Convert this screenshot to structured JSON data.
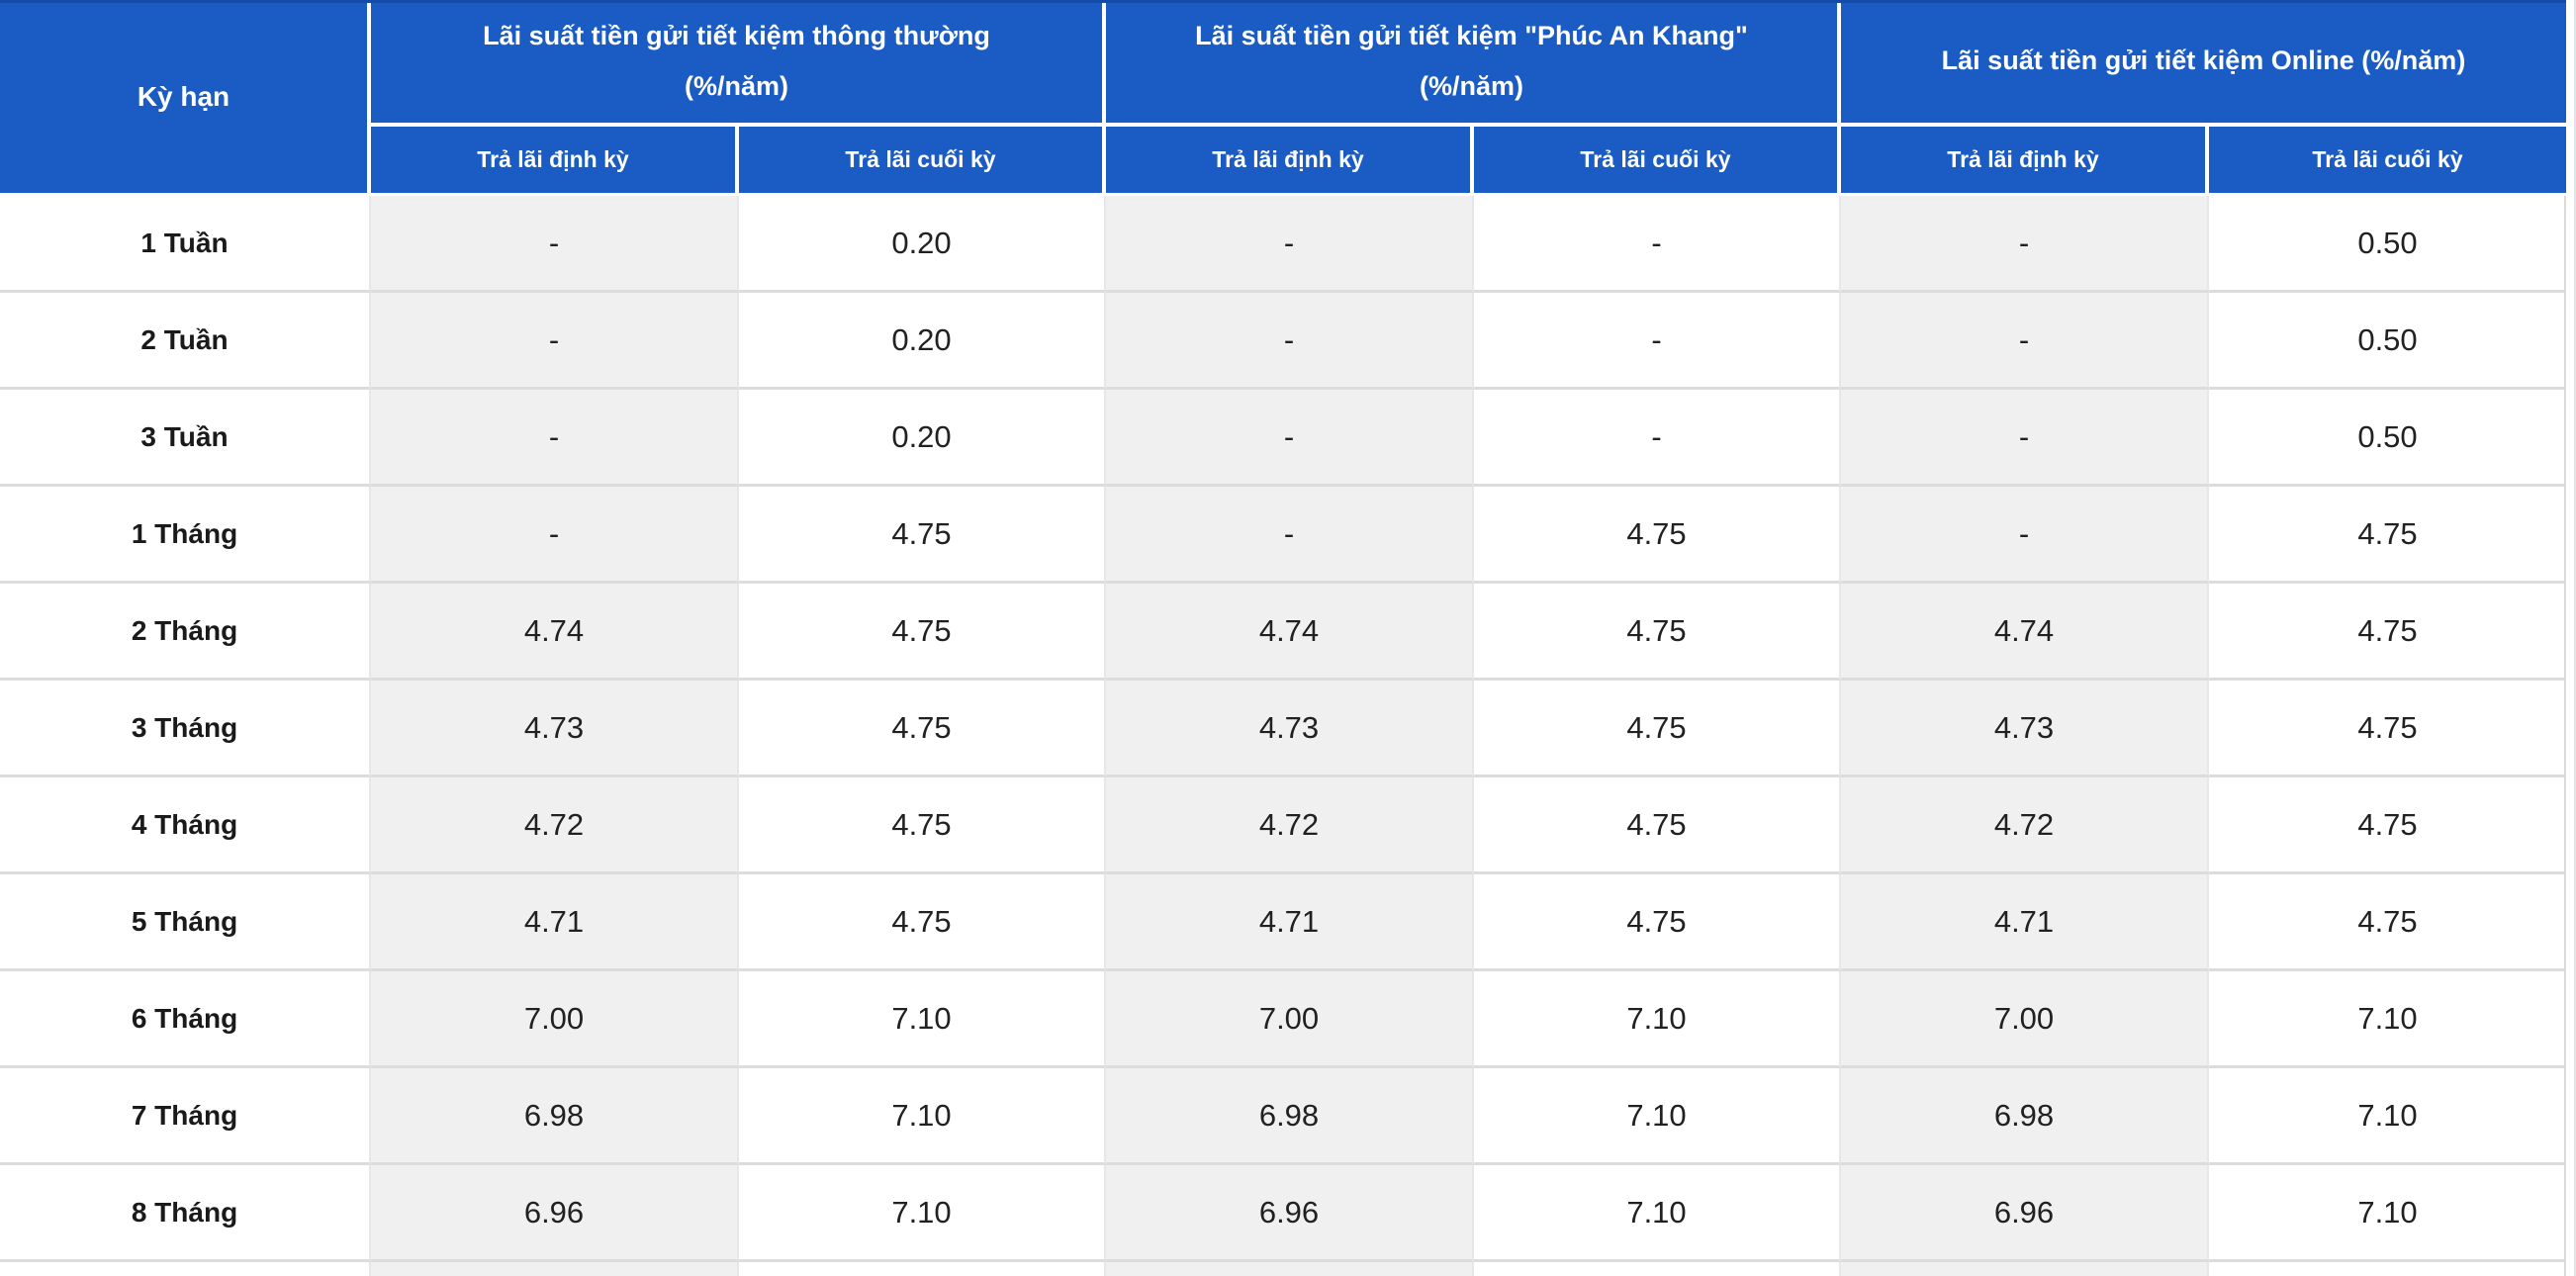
{
  "table": {
    "term_column_header": "Kỳ hạn",
    "column_groups": [
      {
        "title": "Lãi suất tiền gửi tiết kiệm thông thường",
        "unit": "(%/năm)",
        "subcolumns": [
          "Trả lãi định kỳ",
          "Trả lãi cuối kỳ"
        ]
      },
      {
        "title": "Lãi suất tiền gửi tiết kiệm \"Phúc An Khang\"",
        "unit": "(%/năm)",
        "subcolumns": [
          "Trả lãi định kỳ",
          "Trả lãi cuối kỳ"
        ]
      },
      {
        "title": "Lãi suất tiền gửi tiết kiệm Online (%/năm)",
        "unit": "",
        "subcolumns": [
          "Trả lãi định kỳ",
          "Trả lãi cuối kỳ"
        ]
      }
    ],
    "rows": [
      {
        "term": "1 Tuần",
        "values": [
          "-",
          "0.20",
          "-",
          "-",
          "-",
          "0.50"
        ]
      },
      {
        "term": "2 Tuần",
        "values": [
          "-",
          "0.20",
          "-",
          "-",
          "-",
          "0.50"
        ]
      },
      {
        "term": "3 Tuần",
        "values": [
          "-",
          "0.20",
          "-",
          "-",
          "-",
          "0.50"
        ]
      },
      {
        "term": "1 Tháng",
        "values": [
          "-",
          "4.75",
          "-",
          "4.75",
          "-",
          "4.75"
        ]
      },
      {
        "term": "2 Tháng",
        "values": [
          "4.74",
          "4.75",
          "4.74",
          "4.75",
          "4.74",
          "4.75"
        ]
      },
      {
        "term": "3 Tháng",
        "values": [
          "4.73",
          "4.75",
          "4.73",
          "4.75",
          "4.73",
          "4.75"
        ]
      },
      {
        "term": "4 Tháng",
        "values": [
          "4.72",
          "4.75",
          "4.72",
          "4.75",
          "4.72",
          "4.75"
        ]
      },
      {
        "term": "5 Tháng",
        "values": [
          "4.71",
          "4.75",
          "4.71",
          "4.75",
          "4.71",
          "4.75"
        ]
      },
      {
        "term": "6 Tháng",
        "values": [
          "7.00",
          "7.10",
          "7.00",
          "7.10",
          "7.00",
          "7.10"
        ]
      },
      {
        "term": "7 Tháng",
        "values": [
          "6.98",
          "7.10",
          "6.98",
          "7.10",
          "6.98",
          "7.10"
        ]
      },
      {
        "term": "8 Tháng",
        "values": [
          "6.96",
          "7.10",
          "6.96",
          "7.10",
          "6.96",
          "7.10"
        ]
      }
    ]
  },
  "colors": {
    "header_blue": "#1a5cc4",
    "header_text": "#ffffff",
    "stripe_gray": "#f0f0f0",
    "border_gray": "#dcdcdc",
    "text_dark": "#212121"
  }
}
